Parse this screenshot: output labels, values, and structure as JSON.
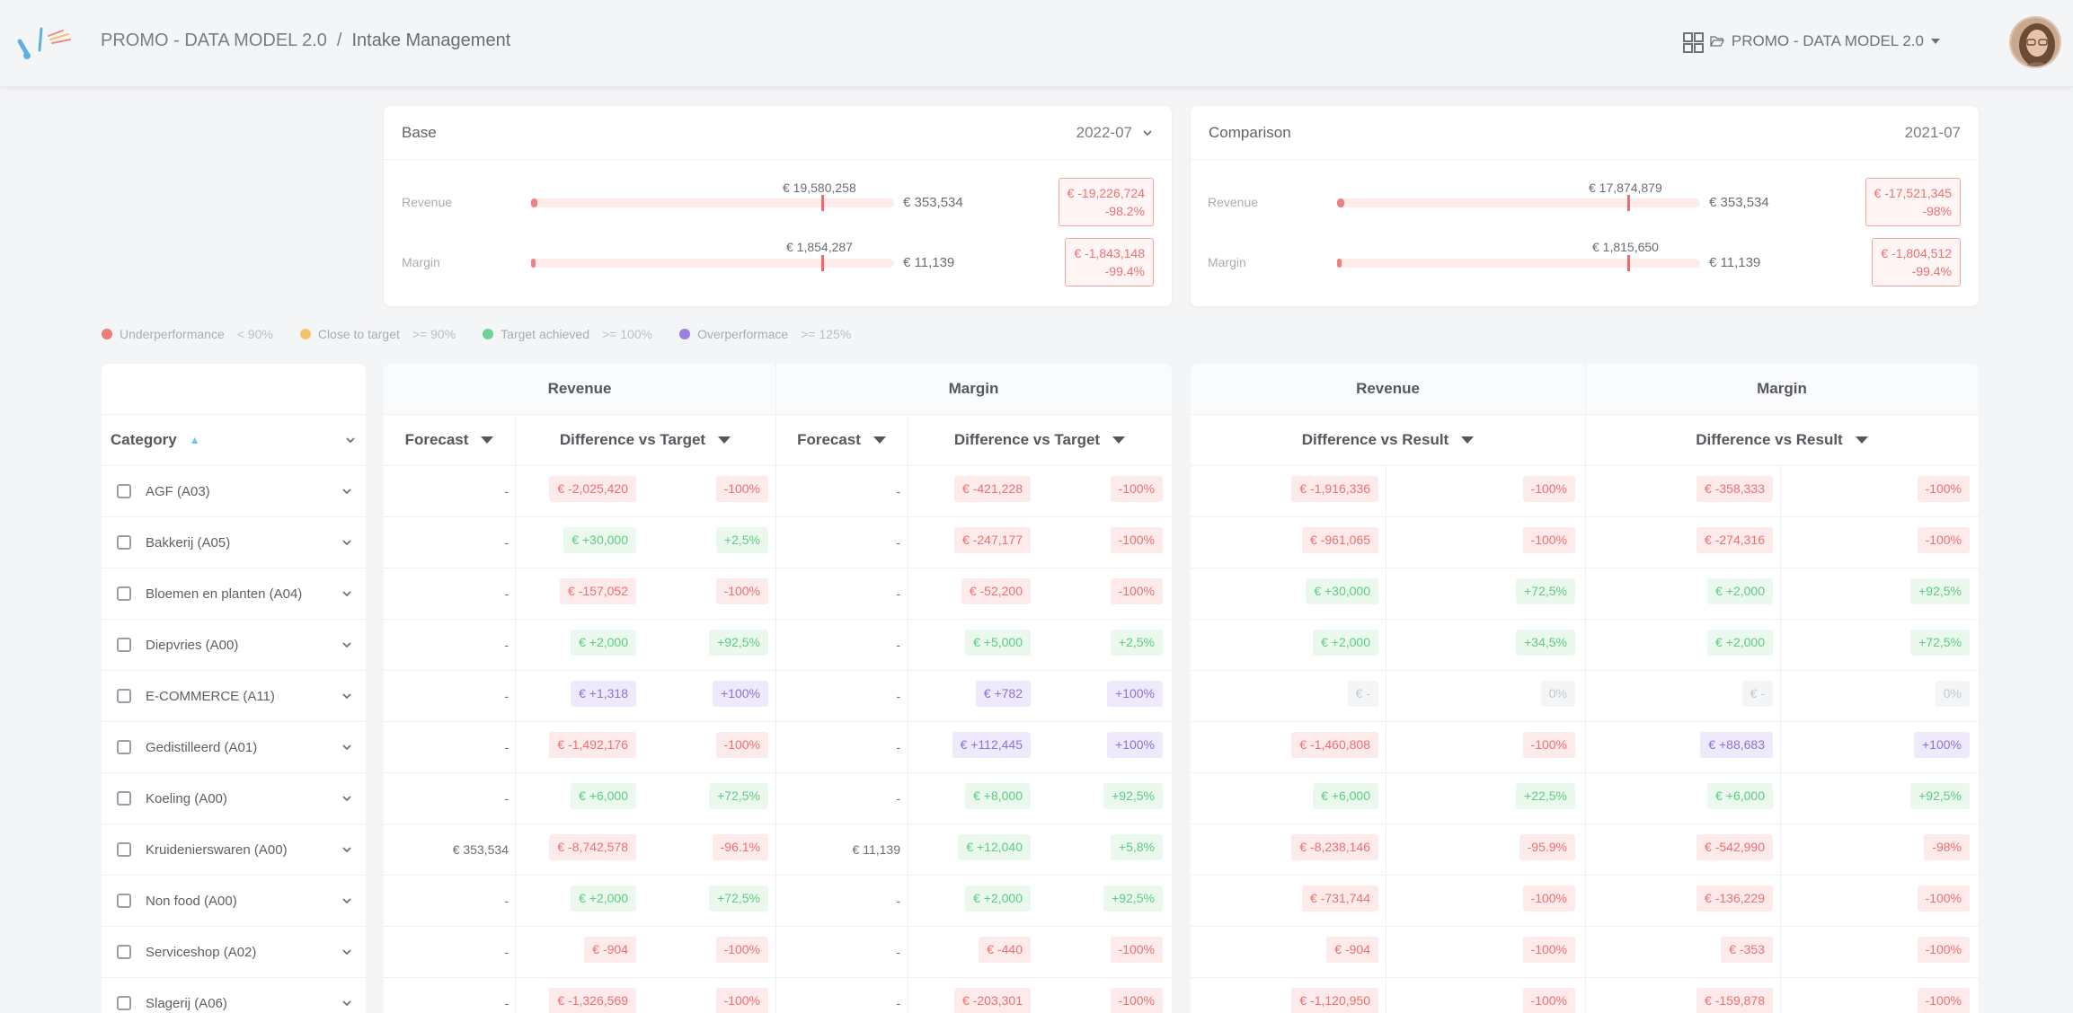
{
  "header": {
    "breadcrumb_root": "PROMO - DATA MODEL 2.0",
    "breadcrumb_sep": "/",
    "breadcrumb_current": "Intake Management",
    "project_selector": "PROMO - DATA MODEL 2.0"
  },
  "base": {
    "title": "Base",
    "period": "2022-07",
    "revenue": {
      "label": "Revenue",
      "target": "€ 19,580,258",
      "value": "€ 353,534",
      "diff": "€ -19,226,724",
      "pct": "-98.2%",
      "fill": 0.018
    },
    "margin": {
      "label": "Margin",
      "target": "€ 1,854,287",
      "value": "€ 11,139",
      "diff": "€ -1,843,148",
      "pct": "-99.4%",
      "fill": 0.006
    }
  },
  "comparison": {
    "title": "Comparison",
    "period": "2021-07",
    "revenue": {
      "label": "Revenue",
      "target": "€ 17,874,879",
      "value": "€ 353,534",
      "diff": "€ -17,521,345",
      "pct": "-98%",
      "fill": 0.02
    },
    "margin": {
      "label": "Margin",
      "target": "€ 1,815,650",
      "value": "€ 11,139",
      "diff": "€ -1,804,512",
      "pct": "-99.4%",
      "fill": 0.006
    }
  },
  "legend": [
    {
      "label": "Underperformance",
      "thr": "< 90%",
      "color": "#ef7b7b"
    },
    {
      "label": "Close to target",
      "thr": ">= 90%",
      "color": "#f5c36b"
    },
    {
      "label": "Target achieved",
      "thr": ">= 100%",
      "color": "#6fd393"
    },
    {
      "label": "Overperformace",
      "thr": ">= 125%",
      "color": "#9b7fe0"
    }
  ],
  "table": {
    "category_header": "Category",
    "base_groups": [
      "Revenue",
      "Margin"
    ],
    "base_cols": [
      "Forecast",
      "Difference vs Target",
      "Forecast",
      "Difference vs Target"
    ],
    "cmp_groups": [
      "Revenue",
      "Margin"
    ],
    "cmp_cols": [
      "Difference vs Result",
      "Difference vs Result"
    ]
  },
  "rows": [
    {
      "cat": "AGF (A03)",
      "rf": "-",
      "rd": [
        "€ -2,025,420",
        "r"
      ],
      "rp": [
        "-100%",
        "r"
      ],
      "mf": "-",
      "md": [
        "€ -421,228",
        "r"
      ],
      "mp": [
        "-100%",
        "r"
      ],
      "cr": [
        "€ -1,916,336",
        "r"
      ],
      "crp": [
        "-100%",
        "r"
      ],
      "cm": [
        "€ -358,333",
        "r"
      ],
      "cmp": [
        "-100%",
        "r"
      ]
    },
    {
      "cat": "Bakkerij (A05)",
      "rf": "-",
      "rd": [
        "€ +30,000",
        "g"
      ],
      "rp": [
        "+2,5%",
        "g"
      ],
      "mf": "-",
      "md": [
        "€ -247,177",
        "r"
      ],
      "mp": [
        "-100%",
        "r"
      ],
      "cr": [
        "€ -961,065",
        "r"
      ],
      "crp": [
        "-100%",
        "r"
      ],
      "cm": [
        "€ -274,316",
        "r"
      ],
      "cmp": [
        "-100%",
        "r"
      ]
    },
    {
      "cat": "Bloemen en planten (A04)",
      "rf": "-",
      "rd": [
        "€ -157,052",
        "r"
      ],
      "rp": [
        "-100%",
        "r"
      ],
      "mf": "-",
      "md": [
        "€ -52,200",
        "r"
      ],
      "mp": [
        "-100%",
        "r"
      ],
      "cr": [
        "€ +30,000",
        "g"
      ],
      "crp": [
        "+72,5%",
        "g"
      ],
      "cm": [
        "€ +2,000",
        "g"
      ],
      "cmp": [
        "+92,5%",
        "g"
      ]
    },
    {
      "cat": "Diepvries (A00)",
      "rf": "-",
      "rd": [
        "€ +2,000",
        "g"
      ],
      "rp": [
        "+92,5%",
        "g"
      ],
      "mf": "-",
      "md": [
        "€ +5,000",
        "g"
      ],
      "mp": [
        "+2,5%",
        "g"
      ],
      "cr": [
        "€ +2,000",
        "g"
      ],
      "crp": [
        "+34,5%",
        "g"
      ],
      "cm": [
        "€ +2,000",
        "g"
      ],
      "cmp": [
        "+72,5%",
        "g"
      ]
    },
    {
      "cat": "E-COMMERCE (A11)",
      "rf": "-",
      "rd": [
        "€ +1,318",
        "p"
      ],
      "rp": [
        "+100%",
        "p"
      ],
      "mf": "-",
      "md": [
        "€ +782",
        "p"
      ],
      "mp": [
        "+100%",
        "p"
      ],
      "cr": [
        "€ -",
        "n"
      ],
      "crp": [
        "0%",
        "n"
      ],
      "cm": [
        "€ -",
        "n"
      ],
      "cmp": [
        "0%",
        "n"
      ]
    },
    {
      "cat": "Gedistilleerd (A01)",
      "rf": "-",
      "rd": [
        "€ -1,492,176",
        "r"
      ],
      "rp": [
        "-100%",
        "r"
      ],
      "mf": "-",
      "md": [
        "€ +112,445",
        "p"
      ],
      "mp": [
        "+100%",
        "p"
      ],
      "cr": [
        "€ -1,460,808",
        "r"
      ],
      "crp": [
        "-100%",
        "r"
      ],
      "cm": [
        "€ +88,683",
        "p"
      ],
      "cmp": [
        "+100%",
        "p"
      ]
    },
    {
      "cat": "Koeling (A00)",
      "rf": "-",
      "rd": [
        "€ +6,000",
        "g"
      ],
      "rp": [
        "+72,5%",
        "g"
      ],
      "mf": "-",
      "md": [
        "€ +8,000",
        "g"
      ],
      "mp": [
        "+92,5%",
        "g"
      ],
      "cr": [
        "€ +6,000",
        "g"
      ],
      "crp": [
        "+22,5%",
        "g"
      ],
      "cm": [
        "€ +6,000",
        "g"
      ],
      "cmp": [
        "+92,5%",
        "g"
      ]
    },
    {
      "cat": "Kruidenierswaren (A00)",
      "rf": "€ 353,534",
      "rd": [
        "€ -8,742,578",
        "r"
      ],
      "rp": [
        "-96.1%",
        "r"
      ],
      "mf": "€ 11,139",
      "md": [
        "€ +12,040",
        "g"
      ],
      "mp": [
        "+5,8%",
        "g"
      ],
      "cr": [
        "€ -8,238,146",
        "r"
      ],
      "crp": [
        "-95.9%",
        "r"
      ],
      "cm": [
        "€ -542,990",
        "r"
      ],
      "cmp": [
        "-98%",
        "r"
      ]
    },
    {
      "cat": "Non food (A00)",
      "rf": "-",
      "rd": [
        "€ +2,000",
        "g"
      ],
      "rp": [
        "+72,5%",
        "g"
      ],
      "mf": "-",
      "md": [
        "€ +2,000",
        "g"
      ],
      "mp": [
        "+92,5%",
        "g"
      ],
      "cr": [
        "€ -731,744",
        "r"
      ],
      "crp": [
        "-100%",
        "r"
      ],
      "cm": [
        "€ -136,229",
        "r"
      ],
      "cmp": [
        "-100%",
        "r"
      ]
    },
    {
      "cat": "Serviceshop (A02)",
      "rf": "-",
      "rd": [
        "€ -904",
        "r"
      ],
      "rp": [
        "-100%",
        "r"
      ],
      "mf": "-",
      "md": [
        "€ -440",
        "r"
      ],
      "mp": [
        "-100%",
        "r"
      ],
      "cr": [
        "€ -904",
        "r"
      ],
      "crp": [
        "-100%",
        "r"
      ],
      "cm": [
        "€ -353",
        "r"
      ],
      "cmp": [
        "-100%",
        "r"
      ]
    },
    {
      "cat": "Slagerij (A06)",
      "rf": "-",
      "rd": [
        "€ -1,326,569",
        "r"
      ],
      "rp": [
        "-100%",
        "r"
      ],
      "mf": "-",
      "md": [
        "€ -203,301",
        "r"
      ],
      "mp": [
        "-100%",
        "r"
      ],
      "cr": [
        "€ -1,120,950",
        "r"
      ],
      "crp": [
        "-100%",
        "r"
      ],
      "cm": [
        "€ -159,878",
        "r"
      ],
      "cmp": [
        "-100%",
        "r"
      ]
    }
  ]
}
